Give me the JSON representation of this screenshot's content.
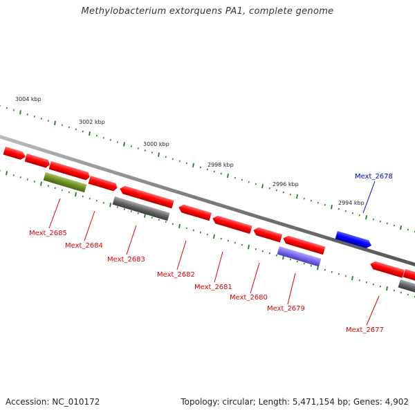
{
  "title": "Methylobacterium extorquens PA1, complete genome",
  "footer": {
    "accession": "Accession: NC_010172",
    "summary": "Topology: circular; Length: 5,471,154 bp; Genes: 4,902"
  },
  "colors": {
    "backbone": "#808080",
    "tick": "#1f7a1f",
    "gene_red": "#ff1010",
    "gene_blue": "#0000ff",
    "gene_olive": "#6b8e23",
    "gene_gray": "#666666",
    "gene_purple": "#7b68ee",
    "label_red": "#dd0000",
    "label_blue": "#0000cc"
  },
  "scale_labels": [
    "3004 kbp",
    "3002 kbp",
    "3000 kbp",
    "2998 kbp",
    "2996 kbp",
    "2994 kbp"
  ],
  "gene_labels": [
    {
      "name": "Mext_2685",
      "color": "red"
    },
    {
      "name": "Mext_2684",
      "color": "red"
    },
    {
      "name": "Mext_2683",
      "color": "red"
    },
    {
      "name": "Mext_2682",
      "color": "red"
    },
    {
      "name": "Mext_2681",
      "color": "red"
    },
    {
      "name": "Mext_2680",
      "color": "red"
    },
    {
      "name": "Mext_2679",
      "color": "red"
    },
    {
      "name": "Mext_2678",
      "color": "blue"
    },
    {
      "name": "Mext_2677",
      "color": "red"
    }
  ]
}
